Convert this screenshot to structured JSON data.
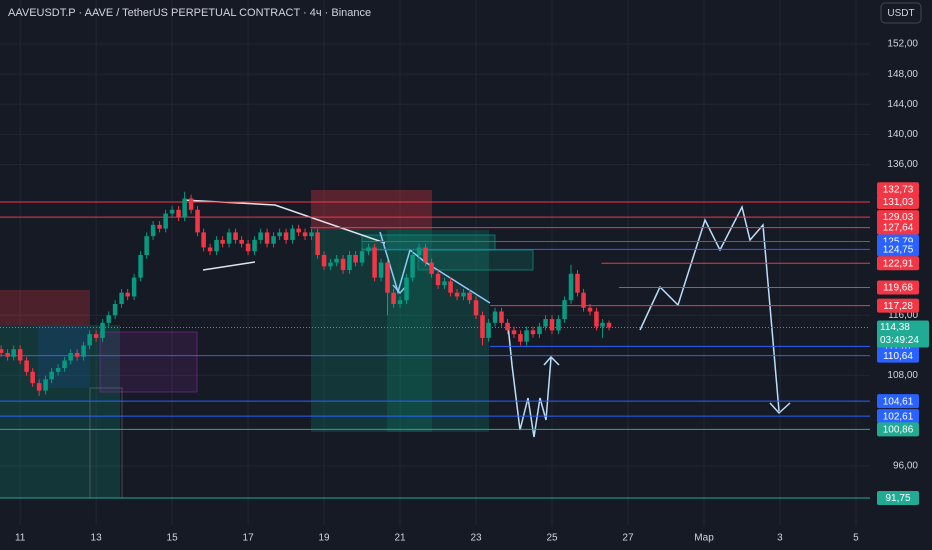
{
  "chart_data": {
    "type": "candlestick",
    "title": "AAVEUSDT.P · AAVE / TetherUS PERPETUAL CONTRACT · 4ч · Binance",
    "currency": "USDT",
    "up_color": "#089981",
    "down_color": "#f23645",
    "grid": true,
    "xlim": [
      10.47,
      33.37
    ],
    "ylim": [
      88.17,
      157.84
    ],
    "xticks": [
      11,
      13,
      15,
      17,
      19,
      21,
      23,
      25,
      27,
      {
        "value": 29,
        "label": "Мар"
      },
      {
        "value": 31,
        "label": "3"
      },
      {
        "value": 33,
        "label": "5"
      }
    ],
    "yticks": [
      {
        "value": 152,
        "label": "152,00"
      },
      {
        "value": 148,
        "label": "148,00"
      },
      {
        "value": 144,
        "label": "144,00"
      },
      {
        "value": 140,
        "label": "140,00"
      },
      {
        "value": 136,
        "label": "136,00"
      },
      {
        "value": 116,
        "label": "116,00"
      },
      {
        "value": 108,
        "label": "108,00"
      },
      {
        "value": 96,
        "label": "96,00"
      }
    ],
    "x": [
      10.5,
      10.67,
      10.83,
      11,
      11.17,
      11.33,
      11.5,
      11.67,
      11.83,
      12,
      12.17,
      12.33,
      12.5,
      12.67,
      12.83,
      13,
      13.17,
      13.33,
      13.5,
      13.67,
      13.83,
      14,
      14.17,
      14.33,
      14.5,
      14.67,
      14.83,
      15,
      15.17,
      15.33,
      15.5,
      15.67,
      15.83,
      16,
      16.17,
      16.33,
      16.5,
      16.67,
      16.83,
      17,
      17.17,
      17.33,
      17.5,
      17.67,
      17.83,
      18,
      18.17,
      18.33,
      18.5,
      18.67,
      18.83,
      19,
      19.17,
      19.33,
      19.5,
      19.67,
      19.83,
      20,
      20.17,
      20.33,
      20.5,
      20.67,
      20.83,
      21,
      21.17,
      21.33,
      21.5,
      21.67,
      21.83,
      22,
      22.17,
      22.33,
      22.5,
      22.67,
      22.83,
      23,
      23.17,
      23.33,
      23.5,
      23.67,
      23.83,
      24,
      24.17,
      24.33,
      24.5,
      24.67,
      24.83,
      25,
      25.17,
      25.33,
      25.5,
      25.67,
      25.83,
      26,
      26.17,
      26.33,
      26.5
    ],
    "open": [
      111.5,
      111,
      110.5,
      111.5,
      110,
      108.5,
      107,
      106,
      107.5,
      108.5,
      109,
      110,
      111,
      110.5,
      112,
      113.5,
      113,
      115,
      116,
      117.5,
      119,
      118.5,
      121,
      124,
      126.5,
      128,
      127.5,
      129.5,
      130,
      129,
      131.5,
      130,
      127,
      125,
      124.5,
      126,
      125.5,
      127,
      126,
      125.5,
      124.5,
      126,
      127,
      125.5,
      126.5,
      127,
      126,
      127.5,
      127,
      126.5,
      127,
      124,
      122.5,
      123,
      123.5,
      122,
      124,
      123,
      124.5,
      125,
      121,
      123,
      119,
      117.5,
      118,
      121,
      124,
      125,
      123,
      121.5,
      120,
      120.5,
      119,
      118.5,
      119,
      118,
      116,
      113,
      115,
      116.5,
      115,
      114,
      113.5,
      112.5,
      114,
      113.5,
      114.5,
      115.5,
      114,
      115.5,
      118,
      121.5,
      119,
      117,
      116.5,
      114.5,
      115
    ],
    "high": [
      112,
      111.5,
      112,
      112,
      110.5,
      109,
      107.5,
      108,
      109,
      109.5,
      110.5,
      111.5,
      111.5,
      112.5,
      114,
      114,
      115.5,
      116.5,
      118,
      119.5,
      119.5,
      121.5,
      124.5,
      127,
      128.5,
      128.5,
      130,
      130.5,
      130.5,
      132.4,
      132,
      130.5,
      127.5,
      125.5,
      126.5,
      126.5,
      127.5,
      127.5,
      126.5,
      126,
      126.5,
      127.5,
      127.5,
      127,
      127.5,
      127.5,
      128,
      128,
      127.5,
      127.5,
      127.5,
      124.5,
      123.5,
      124,
      124,
      124.5,
      124.5,
      125,
      125.5,
      125.5,
      123.5,
      123.5,
      119.5,
      118.5,
      121.5,
      124.5,
      125.5,
      125.5,
      123.5,
      122,
      121,
      121,
      119.5,
      119.5,
      119.5,
      118.5,
      116.5,
      115.5,
      117,
      117,
      115.5,
      114.5,
      114,
      114.5,
      114.5,
      115,
      116,
      116,
      116,
      118.5,
      122.7,
      122,
      119.5,
      117.5,
      117,
      115.5,
      115.3
    ],
    "low": [
      110.5,
      110,
      110,
      109.5,
      108,
      106.5,
      105.3,
      105.5,
      107,
      108,
      108.5,
      109.5,
      110,
      110,
      111.5,
      112.5,
      112.5,
      114.5,
      115.5,
      117,
      118,
      118,
      120.5,
      123.5,
      126,
      127,
      127,
      129,
      128.5,
      128.5,
      129.5,
      126.5,
      124.5,
      124,
      124,
      125,
      125,
      125.5,
      125,
      124,
      124,
      125.5,
      125,
      125,
      126,
      125.5,
      125.5,
      126.5,
      126,
      126,
      123.5,
      122,
      122,
      122.5,
      121.5,
      121.5,
      122.5,
      122.5,
      124,
      120.5,
      120.5,
      116,
      117,
      117,
      117.5,
      120.5,
      123.5,
      122.5,
      121,
      119.5,
      119.5,
      118.5,
      118,
      118,
      117.5,
      115.5,
      112,
      112.5,
      114.5,
      114.5,
      113.5,
      113,
      112,
      112,
      113,
      113,
      114,
      113.5,
      113.5,
      115,
      117.5,
      118.5,
      116.5,
      116,
      114,
      113,
      114
    ],
    "close": [
      111,
      110.5,
      111.5,
      110,
      108.5,
      107,
      106,
      107.5,
      108.5,
      109,
      110,
      111,
      110.5,
      112,
      113.5,
      113,
      115,
      116,
      117.5,
      119,
      118.5,
      121,
      124,
      126.5,
      128,
      127.5,
      129.5,
      130,
      129,
      131.5,
      130,
      127,
      125,
      124.5,
      126,
      125.5,
      127,
      126,
      125.5,
      124.5,
      126,
      127,
      125.5,
      126.5,
      127,
      126,
      127.5,
      127,
      126.5,
      127,
      124,
      122.5,
      123,
      123.5,
      122,
      124,
      123,
      124.5,
      125,
      121,
      123,
      119,
      117.5,
      118,
      121,
      124,
      125,
      123,
      121.5,
      120,
      120.5,
      119,
      118.5,
      119,
      118,
      116,
      113,
      115,
      116.5,
      115,
      114,
      113.5,
      112.5,
      114,
      113.5,
      114.5,
      115.5,
      114,
      115.5,
      118,
      121.5,
      119,
      117,
      116.5,
      114.5,
      115,
      114.38
    ],
    "levels": [
      {
        "value": 132.73,
        "label": "132,73",
        "color": "#f23645",
        "line": false
      },
      {
        "value": 131.03,
        "label": "131,03",
        "color": "#f23645"
      },
      {
        "value": 129.03,
        "label": "129,03",
        "color": "#f23645"
      },
      {
        "value": 127.64,
        "label": "127,64",
        "color": "#f23645",
        "from": 18.63
      },
      {
        "value": 125.79,
        "label": "125,79",
        "color": "#2962ff",
        "from": 20.0
      },
      {
        "value": 124.75,
        "label": "124,75",
        "color": "#2962ff",
        "from": 20.0
      },
      {
        "value": 122.91,
        "label": "122,91",
        "color": "#f23645",
        "from": 26.3
      },
      {
        "value": 119.68,
        "label": "119,68",
        "color": "#f23645",
        "from": 26.76
      },
      {
        "value": 117.28,
        "label": "117,28",
        "color": "#f23645",
        "from": 23.37
      },
      {
        "value": 111.87,
        "label": "111,87",
        "color": "#2962ff",
        "from": 23.37
      },
      {
        "value": 110.64,
        "label": "110,64",
        "color": "#2962ff"
      },
      {
        "value": 104.61,
        "label": "104,61",
        "color": "#2962ff"
      },
      {
        "value": 102.61,
        "label": "102,61",
        "color": "#2962ff"
      },
      {
        "value": 100.86,
        "label": "100,86",
        "color": "#22ab94"
      },
      {
        "value": 91.75,
        "label": "91,75",
        "color": "#22ab94"
      }
    ],
    "last_price": {
      "value": 114.38,
      "label": "114,38",
      "color": "#22ab94"
    },
    "countdown": "03:49:24"
  }
}
